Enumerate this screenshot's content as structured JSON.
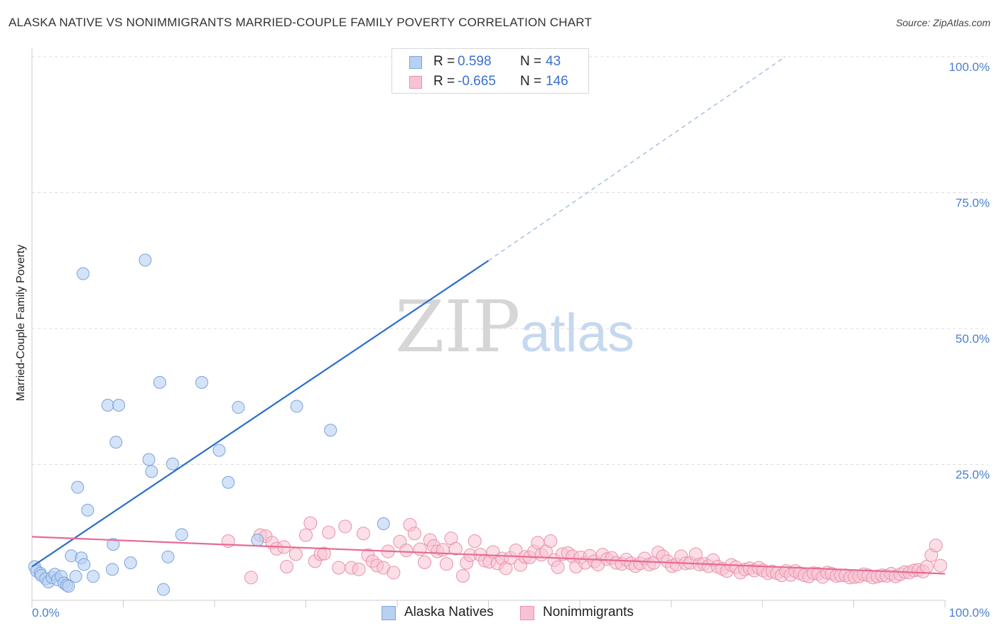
{
  "title": "ALASKA NATIVE VS NONIMMIGRANTS MARRIED-COUPLE FAMILY POVERTY CORRELATION CHART",
  "source": "Source: ZipAtlas.com",
  "watermark": {
    "zip": "ZIP",
    "atlas": "atlas"
  },
  "legend": {
    "series1": {
      "r_label": "R =",
      "r_value": "0.598",
      "n_label": "N =",
      "n_value": "43"
    },
    "series2": {
      "r_label": "R =",
      "r_value": "-0.665",
      "n_label": "N =",
      "n_value": "146"
    }
  },
  "bottom_legend": {
    "series1": "Alaska Natives",
    "series2": "Nonimmigrants"
  },
  "colors": {
    "blue_fill": "#b8d1f2",
    "blue_stroke": "#7aa3dc",
    "blue_line": "#2a6ccc",
    "pink_fill": "#f7c3d2",
    "pink_stroke": "#e891ab",
    "pink_line": "#e86a93",
    "tick": "#4a7fd0",
    "grid": "#dddddd"
  },
  "chart_data": {
    "type": "scatter",
    "title": "ALASKA NATIVE VS NONIMMIGRANTS MARRIED-COUPLE FAMILY POVERTY CORRELATION CHART",
    "xlabel": "",
    "ylabel": "Married-Couple Family Poverty",
    "xlim": [
      0,
      100
    ],
    "ylim": [
      0,
      100
    ],
    "x_tick_labels": [
      "0.0%",
      "100.0%"
    ],
    "y_ticks": [
      25,
      50,
      75,
      100
    ],
    "y_tick_labels": [
      "25.0%",
      "50.0%",
      "75.0%",
      "100.0%"
    ],
    "series": [
      {
        "name": "Alaska Natives",
        "r": 0.598,
        "n": 43,
        "trend": {
          "x0": 0,
          "y0": 6.2,
          "x1": 50,
          "y1": 62.5,
          "dashed_to_x": 82.5,
          "dashed_to_y": 100
        },
        "points": [
          [
            0.3,
            6.2
          ],
          [
            0.5,
            5.4
          ],
          [
            0.9,
            5.0
          ],
          [
            1.0,
            4.6
          ],
          [
            1.5,
            4.0
          ],
          [
            1.8,
            3.4
          ],
          [
            2.2,
            4.2
          ],
          [
            2.5,
            4.8
          ],
          [
            2.8,
            3.8
          ],
          [
            3.2,
            4.4
          ],
          [
            3.5,
            3.2
          ],
          [
            3.8,
            2.8
          ],
          [
            4.0,
            2.6
          ],
          [
            4.3,
            8.2
          ],
          [
            4.8,
            4.4
          ],
          [
            5.0,
            20.8
          ],
          [
            5.4,
            7.8
          ],
          [
            5.7,
            6.6
          ],
          [
            6.1,
            16.6
          ],
          [
            6.7,
            4.4
          ],
          [
            5.6,
            60.1
          ],
          [
            8.3,
            35.9
          ],
          [
            8.9,
            10.3
          ],
          [
            9.2,
            29.1
          ],
          [
            9.5,
            35.9
          ],
          [
            8.8,
            5.7
          ],
          [
            10.8,
            6.9
          ],
          [
            12.4,
            62.6
          ],
          [
            12.8,
            25.9
          ],
          [
            13.1,
            23.7
          ],
          [
            14.0,
            40.1
          ],
          [
            14.4,
            2.0
          ],
          [
            14.9,
            8.0
          ],
          [
            15.4,
            25.1
          ],
          [
            16.4,
            12.1
          ],
          [
            18.6,
            40.1
          ],
          [
            20.5,
            27.6
          ],
          [
            21.5,
            21.7
          ],
          [
            22.6,
            35.5
          ],
          [
            24.7,
            11.1
          ],
          [
            29.0,
            35.7
          ],
          [
            32.7,
            31.3
          ],
          [
            38.5,
            14.1
          ]
        ]
      },
      {
        "name": "Nonimmigrants",
        "r": -0.665,
        "n": 146,
        "trend": {
          "x0": 0,
          "y0": 11.7,
          "x1": 100,
          "y1": 4.9
        },
        "points": [
          [
            21.5,
            10.9
          ],
          [
            24.0,
            4.2
          ],
          [
            25.0,
            12.0
          ],
          [
            25.6,
            11.8
          ],
          [
            26.3,
            10.6
          ],
          [
            26.8,
            9.5
          ],
          [
            27.6,
            9.8
          ],
          [
            27.9,
            6.2
          ],
          [
            28.9,
            8.5
          ],
          [
            30.0,
            12.0
          ],
          [
            30.5,
            14.2
          ],
          [
            31.0,
            7.2
          ],
          [
            31.6,
            8.5
          ],
          [
            32.0,
            8.6
          ],
          [
            32.5,
            12.5
          ],
          [
            33.6,
            6.0
          ],
          [
            34.3,
            13.6
          ],
          [
            35.0,
            6.0
          ],
          [
            35.8,
            5.7
          ],
          [
            36.3,
            12.3
          ],
          [
            36.8,
            8.3
          ],
          [
            37.3,
            7.2
          ],
          [
            37.8,
            6.4
          ],
          [
            38.5,
            6.0
          ],
          [
            39.0,
            9.0
          ],
          [
            39.6,
            5.1
          ],
          [
            40.3,
            10.8
          ],
          [
            41.0,
            9.2
          ],
          [
            41.4,
            13.9
          ],
          [
            41.9,
            12.3
          ],
          [
            42.5,
            9.4
          ],
          [
            43.0,
            7.0
          ],
          [
            43.6,
            11.1
          ],
          [
            44.0,
            10.0
          ],
          [
            44.4,
            9.0
          ],
          [
            45.0,
            9.3
          ],
          [
            45.4,
            6.7
          ],
          [
            45.9,
            11.4
          ],
          [
            46.4,
            9.5
          ],
          [
            47.2,
            4.5
          ],
          [
            47.6,
            6.9
          ],
          [
            48.0,
            8.3
          ],
          [
            48.5,
            10.9
          ],
          [
            49.1,
            8.4
          ],
          [
            49.6,
            7.3
          ],
          [
            50.1,
            7.1
          ],
          [
            50.5,
            8.9
          ],
          [
            51.0,
            6.8
          ],
          [
            51.5,
            7.7
          ],
          [
            51.9,
            5.9
          ],
          [
            52.4,
            7.8
          ],
          [
            53.0,
            9.2
          ],
          [
            53.5,
            6.5
          ],
          [
            54.0,
            8.0
          ],
          [
            54.5,
            7.9
          ],
          [
            55.0,
            9.0
          ],
          [
            55.4,
            10.6
          ],
          [
            55.8,
            8.4
          ],
          [
            56.3,
            9.0
          ],
          [
            56.8,
            10.9
          ],
          [
            57.2,
            7.4
          ],
          [
            57.6,
            6.1
          ],
          [
            58.1,
            8.5
          ],
          [
            58.7,
            8.7
          ],
          [
            59.2,
            8.1
          ],
          [
            59.6,
            6.2
          ],
          [
            60.1,
            7.9
          ],
          [
            60.6,
            6.9
          ],
          [
            61.1,
            8.2
          ],
          [
            61.6,
            7.2
          ],
          [
            62.0,
            6.6
          ],
          [
            62.5,
            8.4
          ],
          [
            63.0,
            7.6
          ],
          [
            63.5,
            7.8
          ],
          [
            64.0,
            6.9
          ],
          [
            64.6,
            6.7
          ],
          [
            65.1,
            7.5
          ],
          [
            65.6,
            6.8
          ],
          [
            66.1,
            6.3
          ],
          [
            66.6,
            6.8
          ],
          [
            67.1,
            7.7
          ],
          [
            67.6,
            6.6
          ],
          [
            68.1,
            6.9
          ],
          [
            68.6,
            8.8
          ],
          [
            69.1,
            8.1
          ],
          [
            69.6,
            7.2
          ],
          [
            70.1,
            6.3
          ],
          [
            70.6,
            6.6
          ],
          [
            71.1,
            8.1
          ],
          [
            71.6,
            6.8
          ],
          [
            72.1,
            6.9
          ],
          [
            72.7,
            8.5
          ],
          [
            73.1,
            6.6
          ],
          [
            73.6,
            6.7
          ],
          [
            74.1,
            6.3
          ],
          [
            74.6,
            7.4
          ],
          [
            75.1,
            6.2
          ],
          [
            75.6,
            5.8
          ],
          [
            76.1,
            5.4
          ],
          [
            76.6,
            6.5
          ],
          [
            77.1,
            6.1
          ],
          [
            77.6,
            5.1
          ],
          [
            78.1,
            5.7
          ],
          [
            78.6,
            5.9
          ],
          [
            79.1,
            5.5
          ],
          [
            79.6,
            6.0
          ],
          [
            80.1,
            5.5
          ],
          [
            80.6,
            5.0
          ],
          [
            81.1,
            5.3
          ],
          [
            81.6,
            5.0
          ],
          [
            82.1,
            4.6
          ],
          [
            82.6,
            5.4
          ],
          [
            83.1,
            4.7
          ],
          [
            83.6,
            5.4
          ],
          [
            84.1,
            5.0
          ],
          [
            84.6,
            4.6
          ],
          [
            85.1,
            4.4
          ],
          [
            85.6,
            5.0
          ],
          [
            86.1,
            4.9
          ],
          [
            86.6,
            4.3
          ],
          [
            87.1,
            5.1
          ],
          [
            87.6,
            4.9
          ],
          [
            88.1,
            4.5
          ],
          [
            88.6,
            4.6
          ],
          [
            89.1,
            4.6
          ],
          [
            89.6,
            4.2
          ],
          [
            90.1,
            4.3
          ],
          [
            90.6,
            4.4
          ],
          [
            91.1,
            4.8
          ],
          [
            91.6,
            4.6
          ],
          [
            92.1,
            4.2
          ],
          [
            92.6,
            4.4
          ],
          [
            93.1,
            4.6
          ],
          [
            93.6,
            4.5
          ],
          [
            94.1,
            4.9
          ],
          [
            94.6,
            4.4
          ],
          [
            95.1,
            4.8
          ],
          [
            95.6,
            5.2
          ],
          [
            96.1,
            5.1
          ],
          [
            96.6,
            5.5
          ],
          [
            97.1,
            5.6
          ],
          [
            97.6,
            5.3
          ],
          [
            98.0,
            6.2
          ],
          [
            98.5,
            8.3
          ],
          [
            99.0,
            10.1
          ],
          [
            99.5,
            6.4
          ]
        ]
      }
    ]
  }
}
